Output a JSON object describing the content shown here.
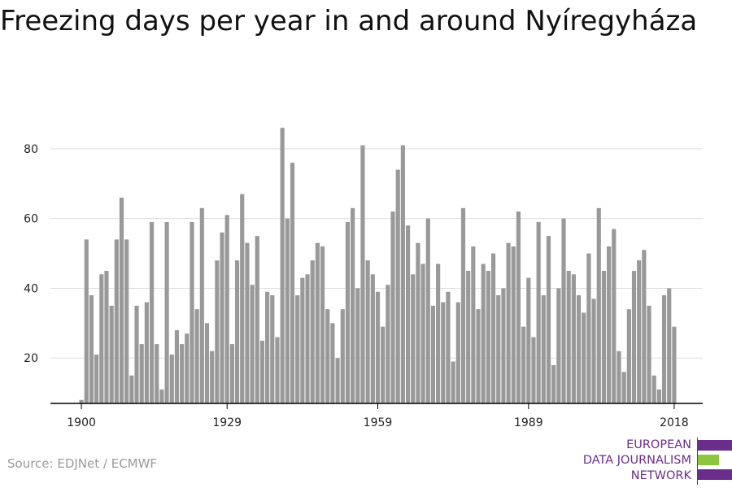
{
  "title": "Freezing days per year in and around Nyíregyháza",
  "source": "Source: EDJNet / ECMWF",
  "logo": {
    "lines": [
      "EUROPEAN",
      "DATA JOURNALISM",
      "NETWORK"
    ],
    "colors": {
      "purple": "#6b2d8c",
      "green": "#8cc63f"
    }
  },
  "colors": {
    "bar": "#999999",
    "grid": "#dddddd",
    "axis": "#000000",
    "text": "#222222"
  },
  "chart_data": {
    "type": "bar",
    "title": "Freezing days per year in and around Nyíregyháza",
    "xlabel": "",
    "ylabel": "",
    "ylim": [
      7,
      90
    ],
    "xlim": [
      1899.5,
      2018.5
    ],
    "grid": true,
    "x_ticks": [
      1900,
      1929,
      1959,
      1989,
      2018
    ],
    "y_ticks": [
      20,
      40,
      60,
      80
    ],
    "x": [
      1900,
      1901,
      1902,
      1903,
      1904,
      1905,
      1906,
      1907,
      1908,
      1909,
      1910,
      1911,
      1912,
      1913,
      1914,
      1915,
      1916,
      1917,
      1918,
      1919,
      1920,
      1921,
      1922,
      1923,
      1924,
      1925,
      1926,
      1927,
      1928,
      1929,
      1930,
      1931,
      1932,
      1933,
      1934,
      1935,
      1936,
      1937,
      1938,
      1939,
      1940,
      1941,
      1942,
      1943,
      1944,
      1945,
      1946,
      1947,
      1948,
      1949,
      1950,
      1951,
      1952,
      1953,
      1954,
      1955,
      1956,
      1957,
      1958,
      1959,
      1960,
      1961,
      1962,
      1963,
      1964,
      1965,
      1966,
      1967,
      1968,
      1969,
      1970,
      1971,
      1972,
      1973,
      1974,
      1975,
      1976,
      1977,
      1978,
      1979,
      1980,
      1981,
      1982,
      1983,
      1984,
      1985,
      1986,
      1987,
      1988,
      1989,
      1990,
      1991,
      1992,
      1993,
      1994,
      1995,
      1996,
      1997,
      1998,
      1999,
      2000,
      2001,
      2002,
      2003,
      2004,
      2005,
      2006,
      2007,
      2008,
      2009,
      2010,
      2011,
      2012,
      2013,
      2014,
      2015,
      2016,
      2017,
      2018
    ],
    "values": [
      8,
      54,
      38,
      21,
      44,
      45,
      35,
      54,
      66,
      54,
      15,
      35,
      24,
      36,
      59,
      24,
      11,
      59,
      21,
      28,
      24,
      27,
      59,
      34,
      63,
      30,
      22,
      48,
      56,
      61,
      24,
      48,
      67,
      53,
      41,
      55,
      25,
      39,
      38,
      26,
      86,
      60,
      76,
      38,
      43,
      44,
      48,
      53,
      52,
      34,
      30,
      20,
      34,
      59,
      63,
      40,
      81,
      48,
      44,
      39,
      29,
      41,
      62,
      74,
      81,
      58,
      44,
      53,
      47,
      60,
      35,
      47,
      36,
      39,
      19,
      36,
      63,
      45,
      52,
      34,
      47,
      45,
      50,
      38,
      40,
      53,
      52,
      62,
      29,
      43,
      26,
      59,
      38,
      55,
      18,
      40,
      60,
      45,
      44,
      38,
      33,
      50,
      37,
      63,
      45,
      52,
      57,
      22,
      16,
      34,
      45,
      48,
      51,
      35,
      15,
      11,
      38,
      40,
      29
    ]
  }
}
